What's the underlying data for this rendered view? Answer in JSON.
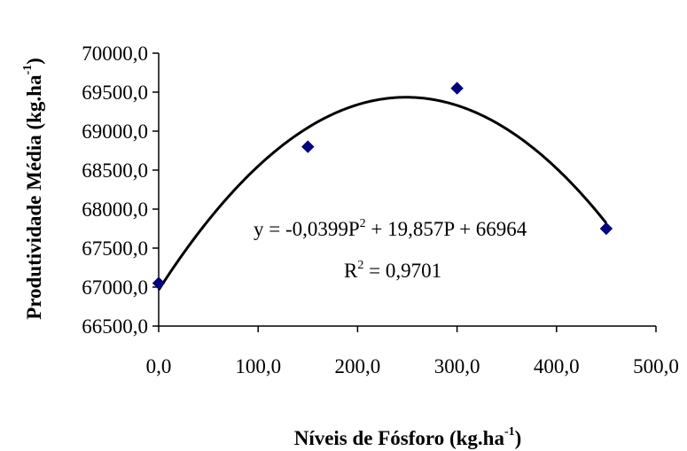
{
  "chart_data": {
    "type": "scatter",
    "title": "",
    "xlabel": "Níveis de Fósforo (kg.ha",
    "xlabel_sup": "-1",
    "xlabel_close": ")",
    "ylabel": "Produtividade Média (kg.ha",
    "ylabel_sup": "-1",
    "ylabel_close": ")",
    "xlim": [
      0,
      500
    ],
    "ylim": [
      66500,
      70000
    ],
    "x_ticks": [
      0,
      100,
      200,
      300,
      400,
      500
    ],
    "x_tick_labels": [
      "0,0",
      "100,0",
      "200,0",
      "300,0",
      "400,0",
      "500,0"
    ],
    "y_ticks": [
      66500,
      67000,
      67500,
      68000,
      68500,
      69000,
      69500,
      70000
    ],
    "y_tick_labels": [
      "66500,0",
      "67000,0",
      "67500,0",
      "68000,0",
      "68500,0",
      "69000,0",
      "69500,0",
      "70000,0"
    ],
    "grid": false,
    "legend": "none",
    "series": [
      {
        "marker": "diamond",
        "color": "#000080",
        "points": [
          {
            "x": 0,
            "y": 67050
          },
          {
            "x": 150,
            "y": 68800
          },
          {
            "x": 300,
            "y": 69550
          },
          {
            "x": 450,
            "y": 67750
          }
        ]
      }
    ],
    "trendline": {
      "type": "polynomial",
      "color": "#000000",
      "coefficients": {
        "a2": -0.0399,
        "a1": 19.857,
        "a0": 66964
      },
      "x_range": [
        0,
        450
      ]
    },
    "annotations": {
      "equation_a": "y = -0,0399P",
      "equation_a_sup": "2",
      "equation_b": " + 19,857P + 66964",
      "r2_a": "R",
      "r2_a_sup": "2",
      "r2_b": " = 0,9701"
    }
  }
}
